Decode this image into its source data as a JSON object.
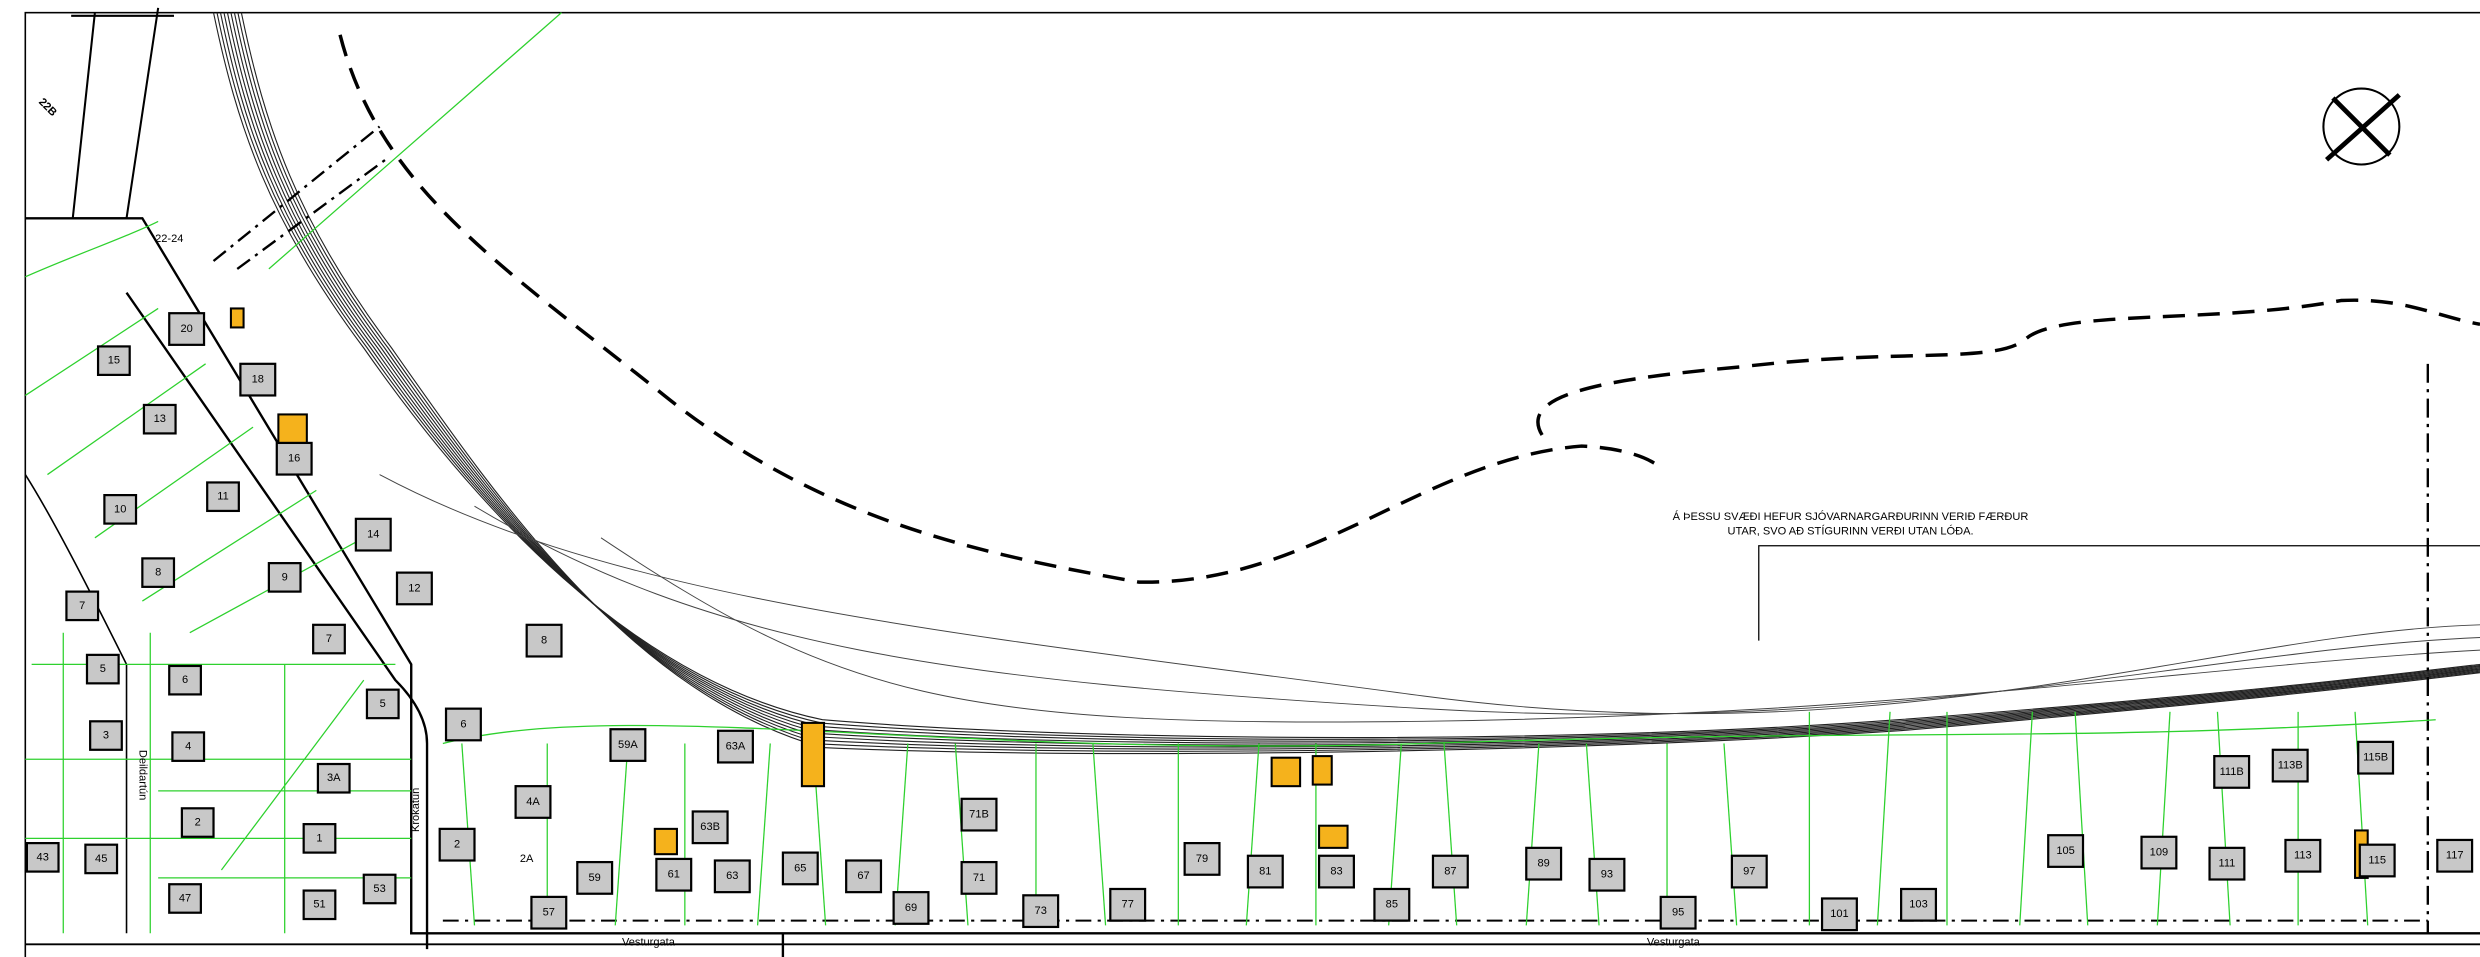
{
  "labels": {
    "plot_number": "22B",
    "lot_22_24": "22-24",
    "streets": [
      "Deildartún",
      "Krókatún",
      "Vesturgata",
      "Vesturgata"
    ],
    "note": [
      "Á ÞESSU SVÆÐI HEFUR  SJÓVARNARGARÐURINN VERIÐ FÆRÐUR",
      "UTAR, SVO AÐ STÍGURINN VERÐI UTAN LÓÐA."
    ],
    "lots": [
      "15",
      "13",
      "10",
      "11",
      "8",
      "9",
      "7",
      "7",
      "5",
      "6",
      "5",
      "3",
      "4",
      "3A",
      "2",
      "1",
      "43",
      "45",
      "47",
      "51",
      "53",
      "20",
      "18",
      "16",
      "14",
      "12",
      "8",
      "6",
      "59A",
      "63A",
      "4A",
      "2",
      "2A",
      "59",
      "61",
      "63B",
      "63",
      "65",
      "67",
      "71B",
      "71",
      "69",
      "73",
      "77",
      "79",
      "81",
      "83",
      "85",
      "87",
      "89",
      "93",
      "95",
      "97",
      "101",
      "103",
      "105",
      "109",
      "111",
      "113",
      "111B",
      "113B",
      "115B",
      "115",
      "117",
      "57"
    ]
  }
}
